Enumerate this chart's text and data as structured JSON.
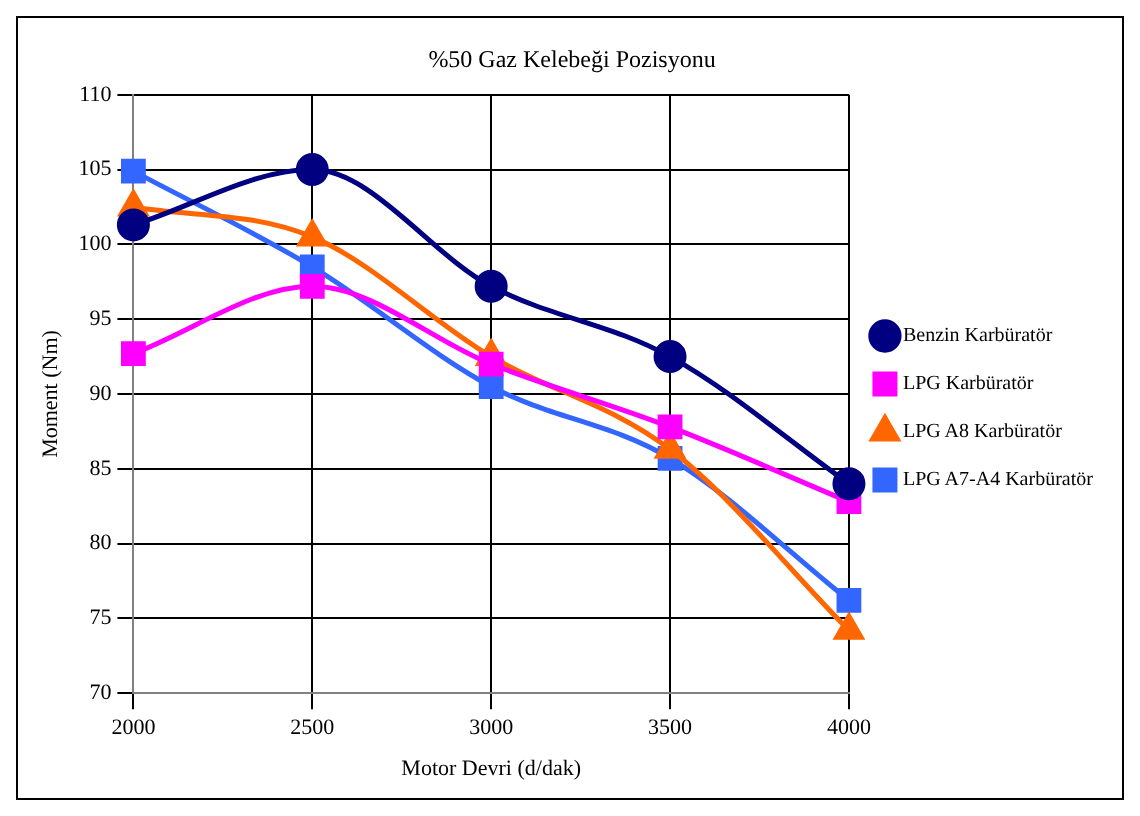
{
  "chart_data": {
    "type": "line",
    "title": "%50 Gaz Kelebeği Pozisyonu",
    "xlabel": "Motor Devri (d/dak)",
    "ylabel": "Moment (Nm)",
    "categories": [
      "2000",
      "2500",
      "3000",
      "3500",
      "4000"
    ],
    "series": [
      {
        "name": "Benzin Karbüratör",
        "color": "#000080",
        "marker": "circle",
        "values": [
          101.3,
          105,
          97.2,
          92.5,
          84
        ]
      },
      {
        "name": "LPG Karbüratör",
        "color": "#ff00ff",
        "marker": "square",
        "values": [
          92.7,
          97.2,
          92,
          87.8,
          82.8
        ]
      },
      {
        "name": "LPG A8 Karbüratör",
        "color": "#ff6600",
        "marker": "triangle",
        "values": [
          102.5,
          100.5,
          92.5,
          86.3,
          74.2
        ]
      },
      {
        "name": "LPG A7-A4 Karbüratör",
        "color": "#3366ff",
        "marker": "square",
        "values": [
          104.9,
          98.5,
          90.5,
          85.7,
          76.2
        ]
      }
    ],
    "ylim": [
      70,
      110
    ],
    "yticks": [
      70,
      75,
      80,
      85,
      90,
      95,
      100,
      105,
      110
    ],
    "grid": true,
    "legend": "right"
  }
}
